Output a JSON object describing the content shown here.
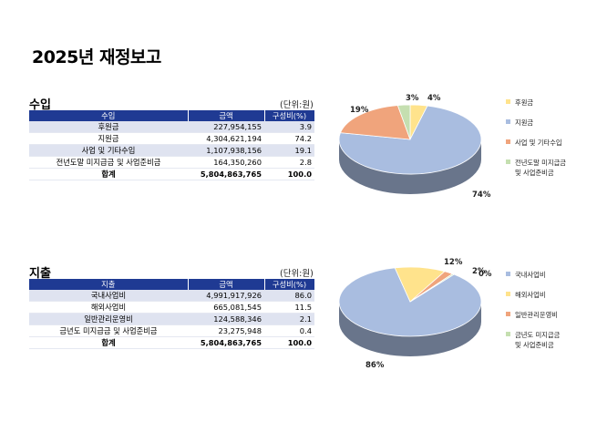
{
  "page_title": "2025년 재정보고",
  "income": {
    "title": "수입",
    "unit": "(단위:원)",
    "headers": [
      "수입",
      "금액",
      "구성비(%)"
    ],
    "rows": [
      {
        "label": "후원금",
        "amount": "227,954,155",
        "ratio": "3.9"
      },
      {
        "label": "지원금",
        "amount": "4,304,621,194",
        "ratio": "74.2"
      },
      {
        "label": "사업 및 기타수입",
        "amount": "1,107,938,156",
        "ratio": "19.1"
      },
      {
        "label": "전년도말 미지급금 및 사업준비금",
        "amount": "164,350,260",
        "ratio": "2.8"
      }
    ],
    "total": {
      "label": "합계",
      "amount": "5,804,863,765",
      "ratio": "100.0"
    },
    "legend": [
      {
        "label": "후원금",
        "color": "#ffe38c"
      },
      {
        "label": "지원금",
        "color": "#a9bde0"
      },
      {
        "label": "사업 및 기타수입",
        "color": "#f0a47c"
      },
      {
        "label": "전년도말 미지급금\n및 사업준비금",
        "color": "#c5dfb0"
      }
    ],
    "pie_labels": [
      "4%",
      "74%",
      "19%",
      "3%"
    ]
  },
  "expense": {
    "title": "지출",
    "unit": "(단위:원)",
    "headers": [
      "지출",
      "금액",
      "구성비(%)"
    ],
    "rows": [
      {
        "label": "국내사업비",
        "amount": "4,991,917,926",
        "ratio": "86.0"
      },
      {
        "label": "해외사업비",
        "amount": "665,081,545",
        "ratio": "11.5"
      },
      {
        "label": "일반관리운영비",
        "amount": "124,588,346",
        "ratio": "2.1"
      },
      {
        "label": "금년도 미지급금 및 사업준비금",
        "amount": "23,275,948",
        "ratio": "0.4"
      }
    ],
    "total": {
      "label": "합계",
      "amount": "5,804,863,765",
      "ratio": "100.0"
    },
    "legend": [
      {
        "label": "국내사업비",
        "color": "#a9bde0"
      },
      {
        "label": "해외사업비",
        "color": "#ffe38c"
      },
      {
        "label": "일반관리운영비",
        "color": "#f0a47c"
      },
      {
        "label": "금년도 미지급금\n및 사업준비금",
        "color": "#c5dfb0"
      }
    ],
    "pie_labels": [
      "86%",
      "12%",
      "2%",
      "0%"
    ]
  },
  "chart_data": [
    {
      "type": "pie",
      "categories": [
        "후원금",
        "지원금",
        "사업 및 기타수입",
        "전년도말 미지급금 및 사업준비금"
      ],
      "values": [
        3.9,
        74.2,
        19.1,
        2.8
      ],
      "colors": [
        "#ffe38c",
        "#a9bde0",
        "#f0a47c",
        "#c5dfb0"
      ],
      "legend": "right"
    },
    {
      "type": "pie",
      "categories": [
        "국내사업비",
        "해외사업비",
        "일반관리운영비",
        "금년도 미지급금 및 사업준비금"
      ],
      "values": [
        86.0,
        11.5,
        2.1,
        0.4
      ],
      "colors": [
        "#a9bde0",
        "#ffe38c",
        "#f0a47c",
        "#c5dfb0"
      ],
      "legend": "right"
    }
  ]
}
